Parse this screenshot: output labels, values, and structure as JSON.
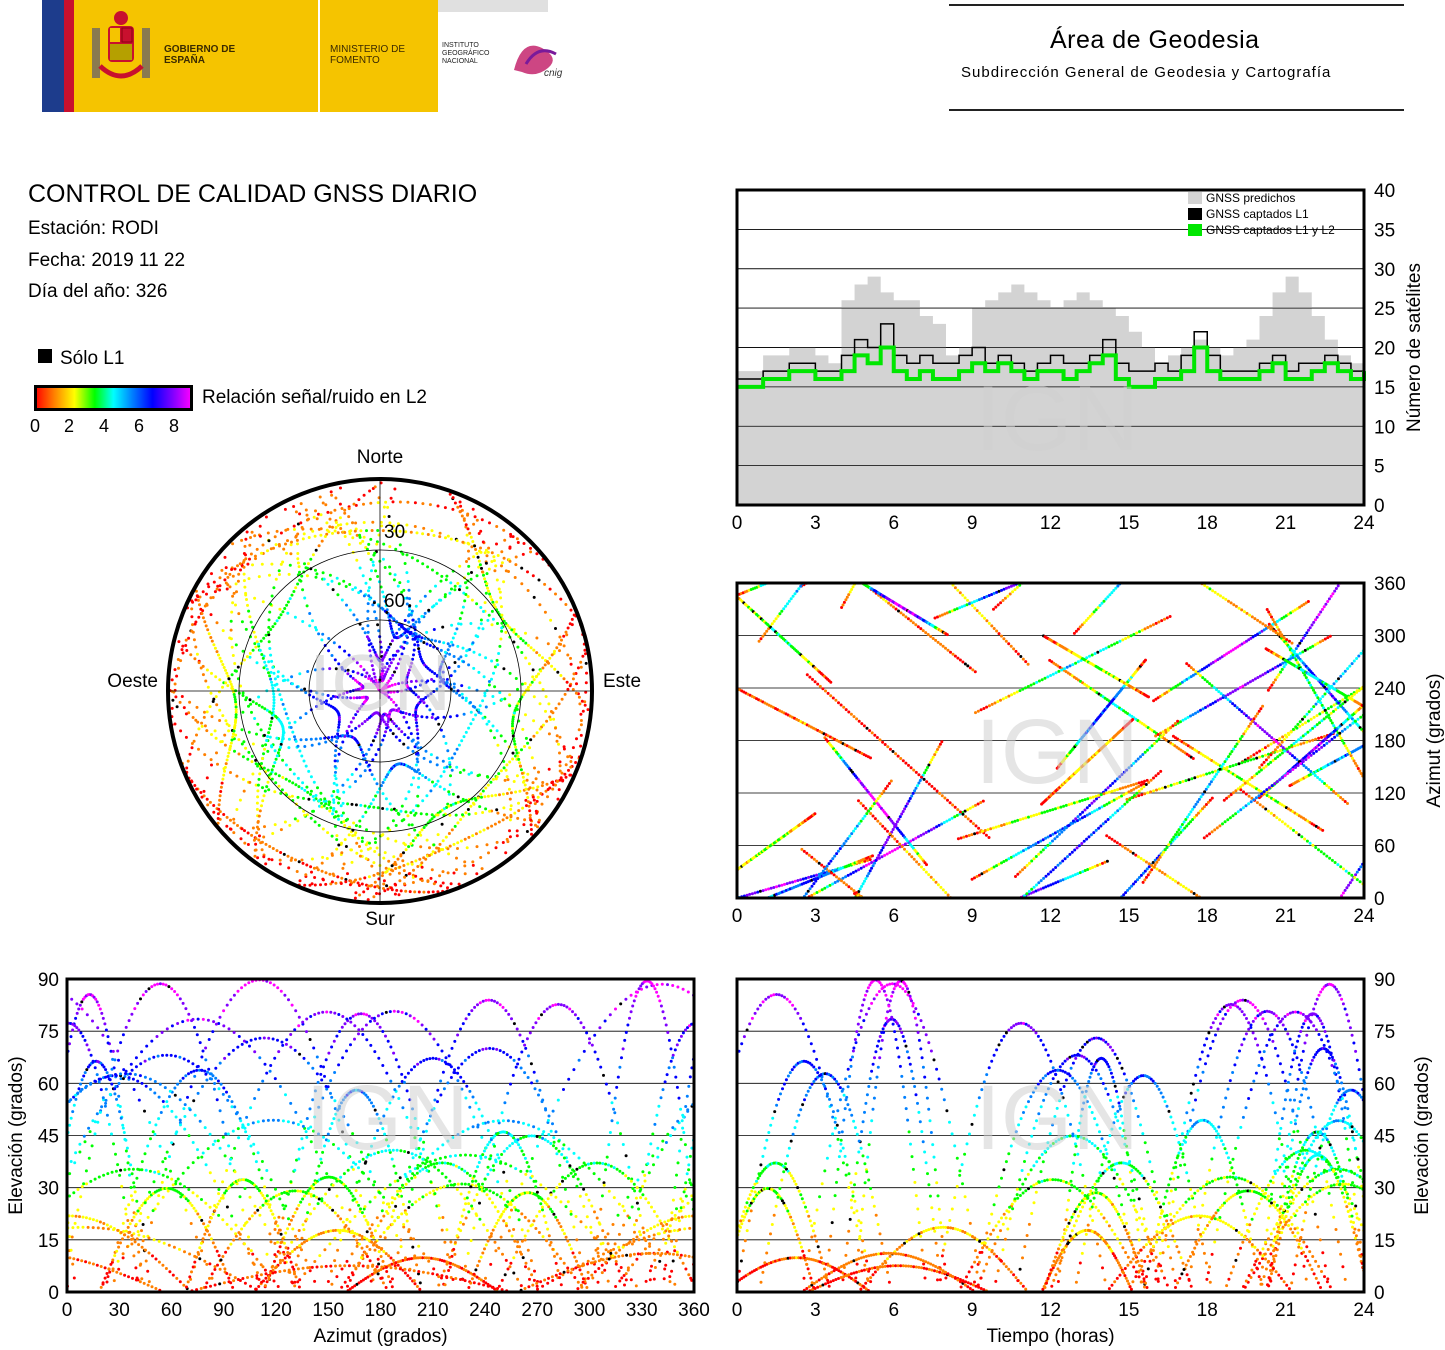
{
  "header": {
    "gobierno": "GOBIERNO DE ESPAÑA",
    "ministerio": "MINISTERIO DE FOMENTO",
    "instituto": "INSTITUTO GEOGRÁFICO NACIONAL",
    "cnig_logo": "cnig",
    "area_title": "Área de Geodesia",
    "area_subtitle": "Subdirección General de Geodesia y Cartografía"
  },
  "report": {
    "title": "CONTROL DE CALIDAD GNSS DIARIO",
    "station": "Estación: RODI",
    "date": "Fecha: 2019 11 22",
    "doy": "Día del año: 326"
  },
  "legend": {
    "l1_only": "Sólo L1",
    "snr_label": "Relación señal/ruido en L2",
    "snr_ticks": [
      "0",
      "2",
      "4",
      "6",
      "8"
    ]
  },
  "watermark": "IGN",
  "colors": {
    "predicted": "#d3d3d3",
    "l1": "#000000",
    "l1l2": "#00e600",
    "snr_scale": [
      "#ff0000",
      "#ff8000",
      "#ffff00",
      "#00ff00",
      "#00ffff",
      "#0080ff",
      "#0000ff",
      "#8000ff",
      "#ff00ff"
    ]
  },
  "chart_data": [
    {
      "type": "area",
      "id": "satellite-count",
      "ylabel": "Número de satélites",
      "ylim": [
        0,
        40
      ],
      "xlim": [
        0,
        24
      ],
      "xticks": [
        0,
        3,
        6,
        9,
        12,
        15,
        18,
        21,
        24
      ],
      "yticks": [
        0,
        5,
        10,
        15,
        20,
        25,
        30,
        35,
        40
      ],
      "legend_position": "top-right",
      "series": [
        {
          "name": "GNSS predichos",
          "color": "#d3d3d3",
          "x": [
            0,
            1,
            2,
            3,
            3.5,
            4,
            4.5,
            5,
            5.5,
            6,
            6.5,
            7,
            7.5,
            8,
            8.5,
            9,
            9.5,
            10,
            10.5,
            11,
            11.5,
            12,
            12.5,
            13,
            13.5,
            14,
            14.5,
            15,
            15.5,
            16,
            16.5,
            17,
            17.5,
            18,
            18.5,
            19,
            19.5,
            20,
            20.5,
            21,
            21.5,
            22,
            22.5,
            23,
            23.5,
            24
          ],
          "values": [
            17,
            19,
            20,
            19,
            18,
            26,
            28,
            29,
            27,
            26,
            26,
            24,
            23,
            19,
            20,
            25,
            26,
            27,
            28,
            27,
            26,
            25,
            26,
            27,
            26,
            25,
            24,
            22,
            20,
            18,
            19,
            20,
            21,
            20,
            19,
            20,
            21,
            24,
            27,
            29,
            27,
            24,
            21,
            19,
            18,
            18
          ]
        },
        {
          "name": "GNSS captados L1",
          "color": "#000000",
          "x": [
            0,
            1,
            2,
            3,
            3.5,
            4,
            4.5,
            5,
            5.5,
            6,
            6.5,
            7,
            7.5,
            8,
            8.5,
            9,
            9.5,
            10,
            10.5,
            11,
            11.5,
            12,
            12.5,
            13,
            13.5,
            14,
            14.5,
            15,
            15.5,
            16,
            16.5,
            17,
            17.5,
            18,
            18.5,
            19,
            19.5,
            20,
            20.5,
            21,
            21.5,
            22,
            22.5,
            23,
            23.5,
            24
          ],
          "values": [
            16,
            17,
            18,
            17,
            17,
            19,
            21,
            20,
            23,
            19,
            18,
            19,
            18,
            18,
            19,
            20,
            18,
            19,
            18,
            17,
            18,
            19,
            18,
            18,
            19,
            21,
            18,
            17,
            17,
            18,
            17,
            19,
            22,
            19,
            17,
            17,
            17,
            18,
            19,
            17,
            18,
            18,
            19,
            18,
            17,
            19
          ]
        },
        {
          "name": "GNSS captados L1 y L2",
          "color": "#00e600",
          "x": [
            0,
            1,
            2,
            3,
            3.5,
            4,
            4.5,
            5,
            5.5,
            6,
            6.5,
            7,
            7.5,
            8,
            8.5,
            9,
            9.5,
            10,
            10.5,
            11,
            11.5,
            12,
            12.5,
            13,
            13.5,
            14,
            14.5,
            15,
            15.5,
            16,
            16.5,
            17,
            17.5,
            18,
            18.5,
            19,
            19.5,
            20,
            20.5,
            21,
            21.5,
            22,
            22.5,
            23,
            23.5,
            24
          ],
          "values": [
            15,
            16,
            17,
            16,
            16,
            17,
            19,
            18,
            20,
            17,
            16,
            17,
            16,
            16,
            17,
            18,
            17,
            18,
            17,
            16,
            17,
            17,
            16,
            17,
            18,
            19,
            16,
            15,
            15,
            16,
            16,
            17,
            20,
            17,
            16,
            16,
            16,
            17,
            18,
            16,
            16,
            17,
            18,
            17,
            16,
            17
          ]
        }
      ]
    },
    {
      "type": "scatter",
      "id": "skyplot",
      "directions": {
        "north": "Norte",
        "south": "Sur",
        "east": "Este",
        "west": "Oeste"
      },
      "ring_labels": [
        "30",
        "60"
      ]
    },
    {
      "type": "scatter",
      "id": "azimuth-vs-time",
      "ylabel": "Azimut (grados)",
      "xlim": [
        0,
        24
      ],
      "ylim": [
        0,
        360
      ],
      "xticks": [
        0,
        3,
        6,
        9,
        12,
        15,
        18,
        21,
        24
      ],
      "yticks": [
        0,
        60,
        120,
        180,
        240,
        300,
        360
      ]
    },
    {
      "type": "scatter",
      "id": "elevation-vs-azimuth",
      "xlabel": "Azimut (grados)",
      "ylabel": "Elevación (grados)",
      "xlim": [
        0,
        360
      ],
      "ylim": [
        0,
        90
      ],
      "xticks": [
        0,
        30,
        60,
        90,
        120,
        150,
        180,
        210,
        240,
        270,
        300,
        330,
        360
      ],
      "yticks": [
        0,
        15,
        30,
        45,
        60,
        75,
        90
      ]
    },
    {
      "type": "scatter",
      "id": "elevation-vs-time",
      "xlabel": "Tiempo (horas)",
      "ylabel": "Elevación (grados)",
      "xlim": [
        0,
        24
      ],
      "ylim": [
        0,
        90
      ],
      "xticks": [
        0,
        3,
        6,
        9,
        12,
        15,
        18,
        21,
        24
      ],
      "yticks": [
        0,
        15,
        30,
        45,
        60,
        75,
        90
      ]
    }
  ]
}
